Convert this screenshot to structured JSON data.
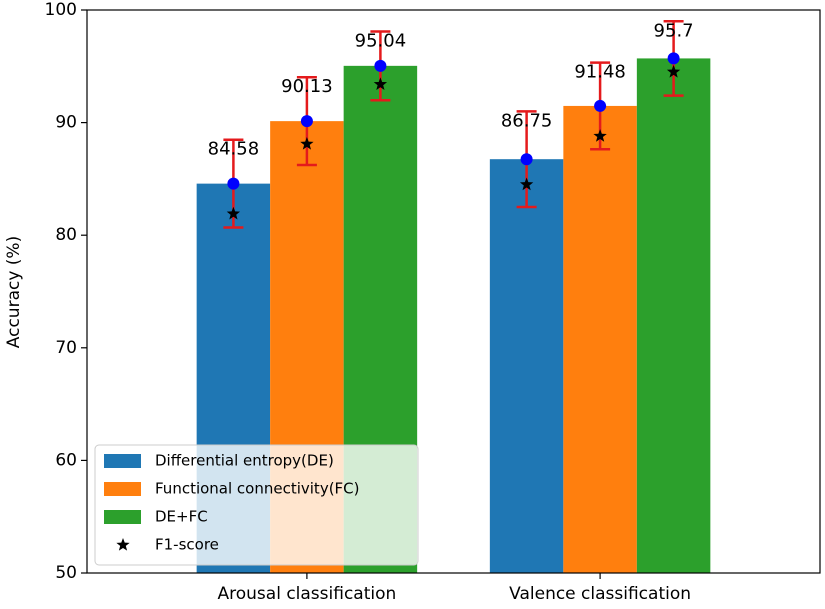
{
  "chart_data": {
    "type": "bar",
    "ylabel": "Accuracy (%)",
    "categories": [
      "Arousal classification",
      "Valence classification"
    ],
    "series": [
      {
        "name": "Differential entropy(DE)",
        "color": "#1f77b4",
        "values": [
          84.58,
          86.75
        ],
        "errors": [
          3.9,
          4.25
        ],
        "f1": [
          81.9,
          84.5
        ]
      },
      {
        "name": "Functional connectivity(FC)",
        "color": "#ff7f0e",
        "values": [
          90.13,
          91.48
        ],
        "errors": [
          3.9,
          3.85
        ],
        "f1": [
          88.1,
          88.8
        ]
      },
      {
        "name": "DE+FC",
        "color": "#2ca02c",
        "values": [
          95.04,
          95.7
        ],
        "errors": [
          3.05,
          3.3
        ],
        "f1": [
          93.4,
          94.5
        ]
      }
    ],
    "f1_marker": {
      "name": "F1-score",
      "color": "#000000"
    },
    "error_color": "#e41a1c",
    "point_color": "#0000ff",
    "ylim": [
      50,
      100
    ],
    "yticks": [
      50,
      60,
      70,
      80,
      90,
      100
    ],
    "legend": "lower left"
  }
}
